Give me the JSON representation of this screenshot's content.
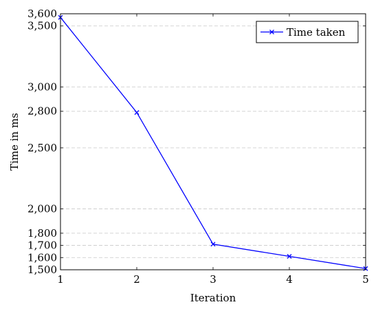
{
  "chart_data": {
    "type": "line",
    "title": "",
    "xlabel": "Iteration",
    "ylabel": "Time in ms",
    "x": [
      1,
      2,
      3,
      4,
      5
    ],
    "xlim": [
      1,
      5
    ],
    "ylim": [
      1500,
      3600
    ],
    "xticks": [
      1,
      2,
      3,
      4,
      5
    ],
    "xtick_labels": [
      "1",
      "2",
      "3",
      "4",
      "5"
    ],
    "yticks": [
      1500,
      1600,
      1700,
      1800,
      2000,
      2500,
      2800,
      3000,
      3500,
      3600
    ],
    "ytick_labels": [
      "1,500",
      "1,600",
      "1,700",
      "1,800",
      "2,000",
      "2,500",
      "2,800",
      "3,000",
      "3,500",
      "3,600"
    ],
    "grid": "horizontal dashed",
    "legend_position": "top-right",
    "series": [
      {
        "name": "Time taken",
        "color": "#0000ff",
        "marker": "x",
        "values": [
          3570,
          2790,
          1710,
          1610,
          1510
        ]
      }
    ]
  }
}
